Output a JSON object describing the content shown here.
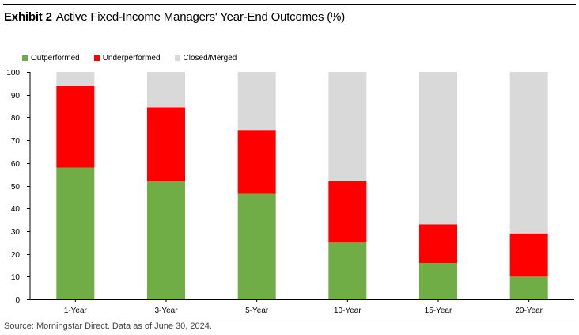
{
  "header": {
    "exhibit_label": "Exhibit 2",
    "title": "Active Fixed-Income Managers' Year-End Outcomes (%)"
  },
  "footer": {
    "source": "Source: Morningstar Direct. Data as of June 30, 2024."
  },
  "legend": {
    "items": [
      {
        "label": "Outperformed",
        "color": "#70ad47"
      },
      {
        "label": "Underperformed",
        "color": "#ff0000"
      },
      {
        "label": "Closed/Merged",
        "color": "#d9d9d9"
      }
    ]
  },
  "chart_data": {
    "type": "bar",
    "stacked": true,
    "title": "Active Fixed-Income Managers' Year-End Outcomes (%)",
    "xlabel": "",
    "ylabel": "",
    "ylim": [
      0,
      100
    ],
    "yticks": [
      0,
      10,
      20,
      30,
      40,
      50,
      60,
      70,
      80,
      90,
      100
    ],
    "grid": false,
    "legend_position": "top-left",
    "categories": [
      "1-Year",
      "3-Year",
      "5-Year",
      "10-Year",
      "15-Year",
      "20-Year"
    ],
    "series": [
      {
        "name": "Outperformed",
        "color": "#70ad47",
        "values": [
          58,
          52,
          46.5,
          25,
          16,
          10
        ]
      },
      {
        "name": "Underperformed",
        "color": "#ff0000",
        "values": [
          36,
          32.5,
          28,
          27,
          17,
          19
        ]
      },
      {
        "name": "Closed/Merged",
        "color": "#d9d9d9",
        "values": [
          6,
          15.5,
          25.5,
          48,
          67,
          71
        ]
      }
    ]
  }
}
